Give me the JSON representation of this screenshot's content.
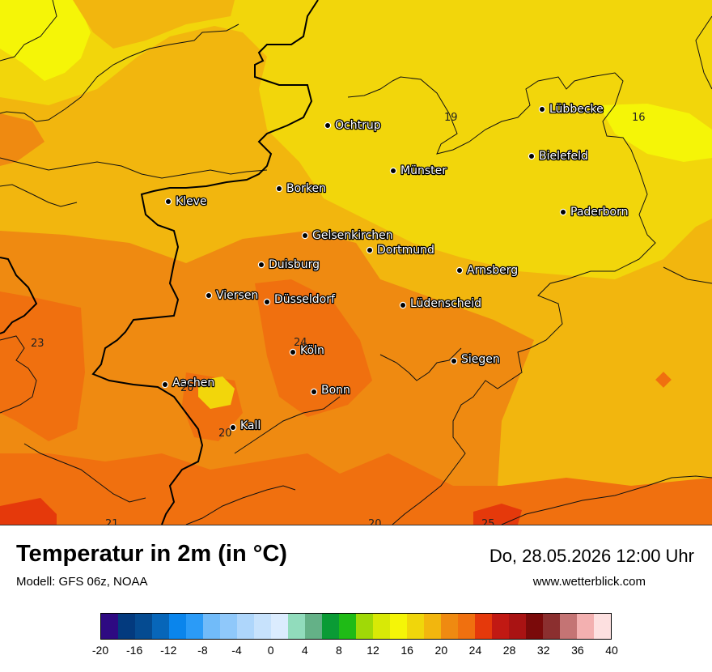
{
  "map": {
    "cities": [
      {
        "name": "Ochtrup"
      },
      {
        "name": "Lübbecke"
      },
      {
        "name": "Bielefeld"
      },
      {
        "name": "Münster"
      },
      {
        "name": "Borken"
      },
      {
        "name": "Kleve"
      },
      {
        "name": "Paderborn"
      },
      {
        "name": "Gelsenkirchen"
      },
      {
        "name": "Dortmund"
      },
      {
        "name": "Duisburg"
      },
      {
        "name": "Arnsberg"
      },
      {
        "name": "Viersen"
      },
      {
        "name": "Düsseldorf"
      },
      {
        "name": "Lüdenscheid"
      },
      {
        "name": "Köln"
      },
      {
        "name": "Siegen"
      },
      {
        "name": "Aachen"
      },
      {
        "name": "Bonn"
      },
      {
        "name": "Kall"
      }
    ],
    "isolabels": [
      {
        "text": "19"
      },
      {
        "text": "16"
      },
      {
        "text": "23"
      },
      {
        "text": "24"
      },
      {
        "text": "20"
      },
      {
        "text": "20"
      },
      {
        "text": "21"
      },
      {
        "text": "20"
      },
      {
        "text": "25"
      }
    ]
  },
  "footer": {
    "title": "Temperatur in 2m (in °C)",
    "model": "Modell: GFS 06z, NOAA",
    "datetime": "Do, 28.05.2026 12:00 Uhr",
    "website": "www.wetterblick.com"
  },
  "legend": {
    "colors": [
      "#2e0a82",
      "#033a7e",
      "#054b91",
      "#0766b9",
      "#0a85ec",
      "#2b9bf7",
      "#71bbf9",
      "#8fc8fa",
      "#aed6fb",
      "#c7e2fc",
      "#dbecfe",
      "#91dcbc",
      "#64b187",
      "#0a9b35",
      "#1fbb16",
      "#a0d907",
      "#d8e906",
      "#f5f507",
      "#f0d60b",
      "#f2b60e",
      "#ef8a11",
      "#f0700f",
      "#e5390b",
      "#c11913",
      "#a91313",
      "#7a0a0a",
      "#8b2f2f",
      "#c47474",
      "#f3b0b0",
      "#fde0e0"
    ],
    "tick_labels": [
      "-20",
      "-16",
      "-12",
      "-8",
      "-4",
      "0",
      "4",
      "8",
      "12",
      "16",
      "20",
      "24",
      "28",
      "32",
      "36",
      "40"
    ]
  }
}
